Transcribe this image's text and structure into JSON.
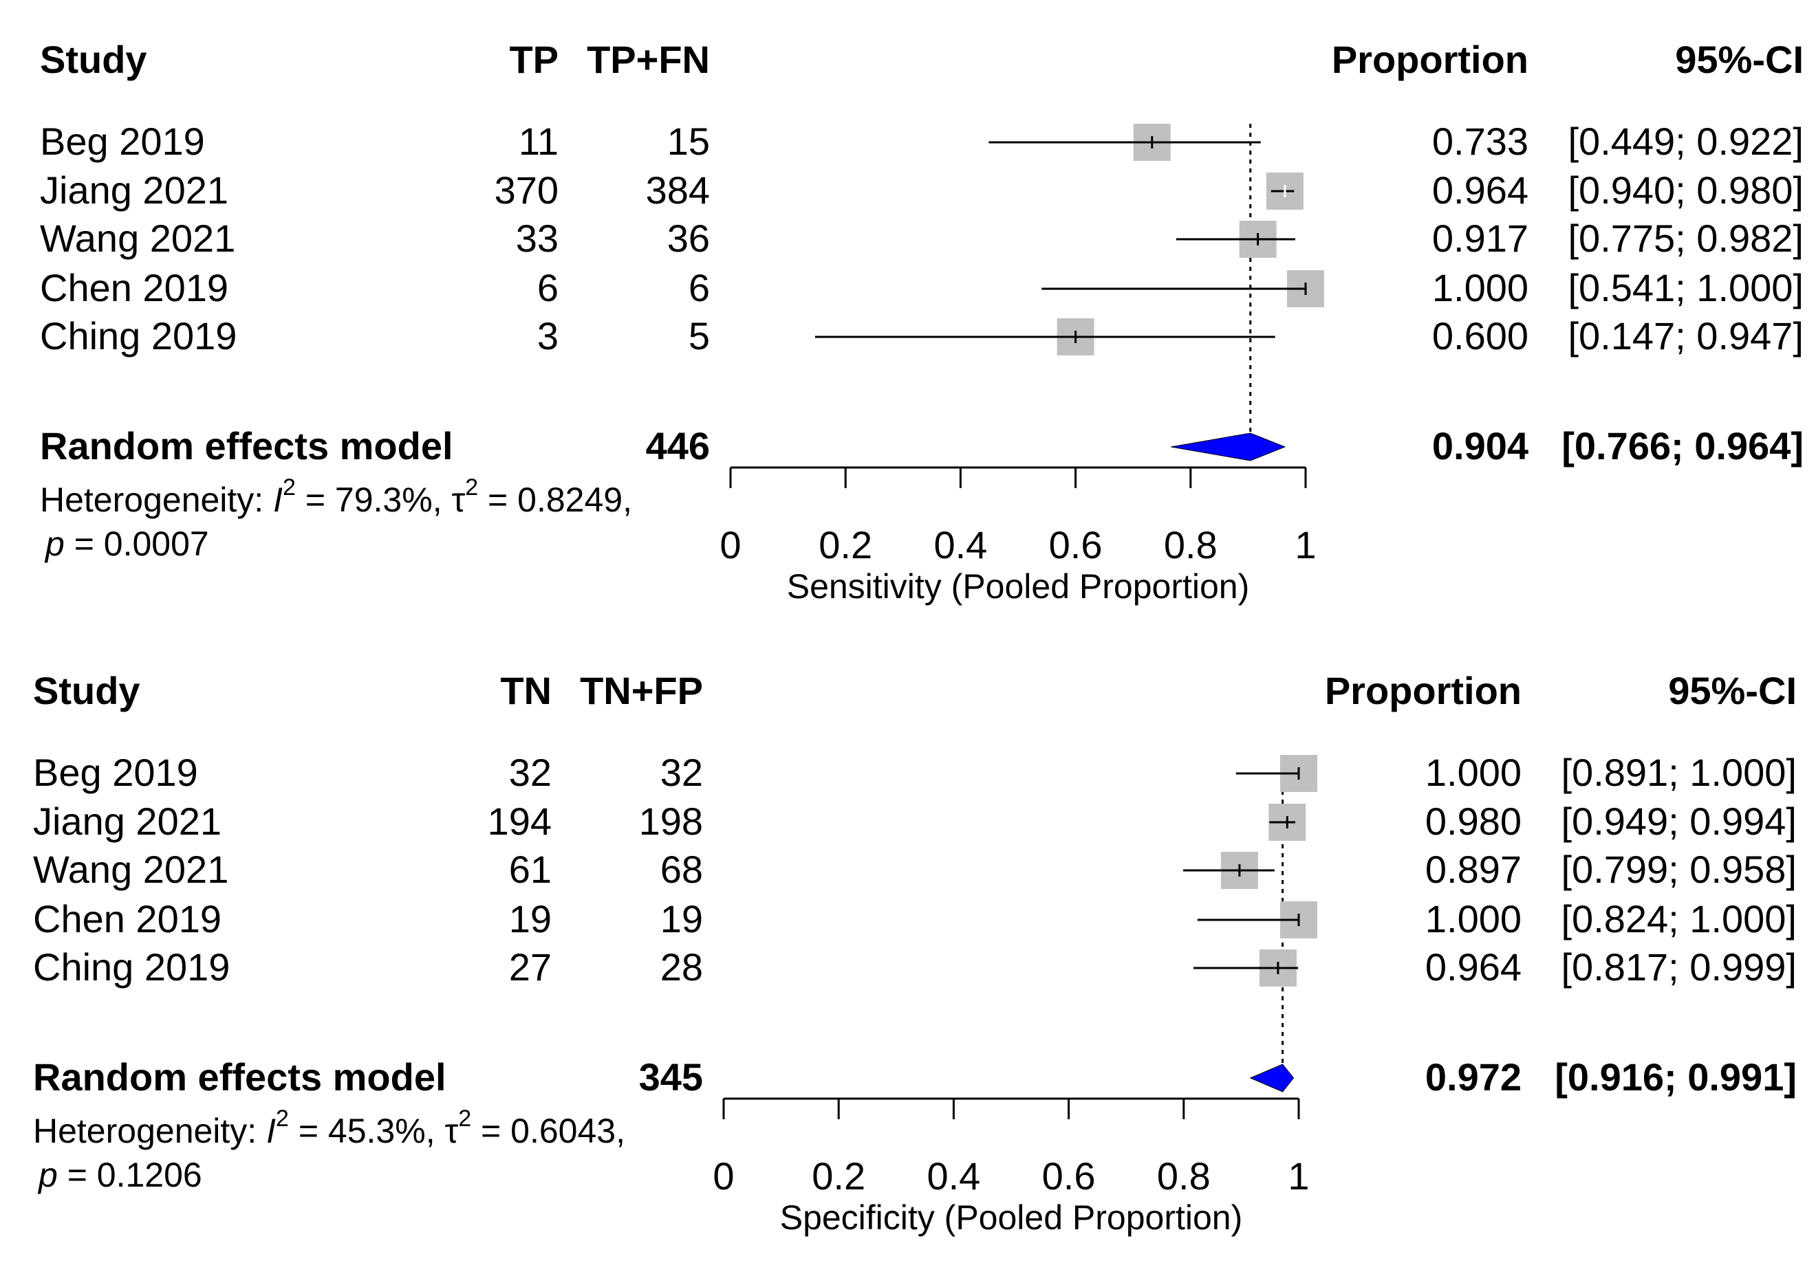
{
  "chart_data": [
    {
      "type": "forest",
      "headers": {
        "study": "Study",
        "events": "TP",
        "total": "TP+FN",
        "proportion": "Proportion",
        "ci": "95%-CI"
      },
      "studies": [
        {
          "name": "Beg 2019",
          "events": "11",
          "total": "15",
          "prop": 0.733,
          "lower": 0.449,
          "upper": 0.922,
          "prop_label": "0.733",
          "ci_label": "[0.449; 0.922]"
        },
        {
          "name": "Jiang 2021",
          "events": "370",
          "total": "384",
          "prop": 0.964,
          "lower": 0.94,
          "upper": 0.98,
          "prop_label": "0.964",
          "ci_label": "[0.940; 0.980]"
        },
        {
          "name": "Wang 2021",
          "events": "33",
          "total": "36",
          "prop": 0.917,
          "lower": 0.775,
          "upper": 0.982,
          "prop_label": "0.917",
          "ci_label": "[0.775; 0.982]"
        },
        {
          "name": "Chen 2019",
          "events": "6",
          "total": "6",
          "prop": 1.0,
          "lower": 0.541,
          "upper": 1.0,
          "prop_label": "1.000",
          "ci_label": "[0.541; 1.000]"
        },
        {
          "name": "Ching 2019",
          "events": "3",
          "total": "5",
          "prop": 0.6,
          "lower": 0.147,
          "upper": 0.947,
          "prop_label": "0.600",
          "ci_label": "[0.147; 0.947]"
        }
      ],
      "pooled": {
        "label": "Random effects model",
        "total": "446",
        "prop": 0.904,
        "lower": 0.766,
        "upper": 0.964,
        "prop_label": "0.904",
        "ci_label": "[0.766; 0.964]"
      },
      "heterogeneity": {
        "prefix": "Heterogeneity: ",
        "i2": "79.3%",
        "tau2": "0.8249",
        "p": "0.0007"
      },
      "xlim": [
        0,
        1
      ],
      "xticks": [
        0,
        0.2,
        0.4,
        0.6,
        0.8,
        1
      ],
      "xtick_labels": [
        "0",
        "0.2",
        "0.4",
        "0.6",
        "0.8",
        "1"
      ],
      "xlabel": "Sensitivity (Pooled Proportion)",
      "box_color": "#c0c0c0",
      "diamond_color": "#0000ff"
    },
    {
      "type": "forest",
      "headers": {
        "study": "Study",
        "events": "TN",
        "total": "TN+FP",
        "proportion": "Proportion",
        "ci": "95%-CI"
      },
      "studies": [
        {
          "name": "Beg 2019",
          "events": "32",
          "total": "32",
          "prop": 1.0,
          "lower": 0.891,
          "upper": 1.0,
          "prop_label": "1.000",
          "ci_label": "[0.891; 1.000]"
        },
        {
          "name": "Jiang 2021",
          "events": "194",
          "total": "198",
          "prop": 0.98,
          "lower": 0.949,
          "upper": 0.994,
          "prop_label": "0.980",
          "ci_label": "[0.949; 0.994]"
        },
        {
          "name": "Wang 2021",
          "events": "61",
          "total": "68",
          "prop": 0.897,
          "lower": 0.799,
          "upper": 0.958,
          "prop_label": "0.897",
          "ci_label": "[0.799; 0.958]"
        },
        {
          "name": "Chen 2019",
          "events": "19",
          "total": "19",
          "prop": 1.0,
          "lower": 0.824,
          "upper": 1.0,
          "prop_label": "1.000",
          "ci_label": "[0.824; 1.000]"
        },
        {
          "name": "Ching 2019",
          "events": "27",
          "total": "28",
          "prop": 0.964,
          "lower": 0.817,
          "upper": 0.999,
          "prop_label": "0.964",
          "ci_label": "[0.817; 0.999]"
        }
      ],
      "pooled": {
        "label": "Random effects model",
        "total": "345",
        "prop": 0.972,
        "lower": 0.916,
        "upper": 0.991,
        "prop_label": "0.972",
        "ci_label": "[0.916; 0.991]"
      },
      "heterogeneity": {
        "prefix": "Heterogeneity: ",
        "i2": "45.3%",
        "tau2": "0.6043",
        "p": "0.1206"
      },
      "xlim": [
        0,
        1
      ],
      "xticks": [
        0,
        0.2,
        0.4,
        0.6,
        0.8,
        1
      ],
      "xtick_labels": [
        "0",
        "0.2",
        "0.4",
        "0.6",
        "0.8",
        "1"
      ],
      "xlabel": "Specificity (Pooled Proportion)",
      "box_color": "#c0c0c0",
      "diamond_color": "#0000ff"
    }
  ]
}
